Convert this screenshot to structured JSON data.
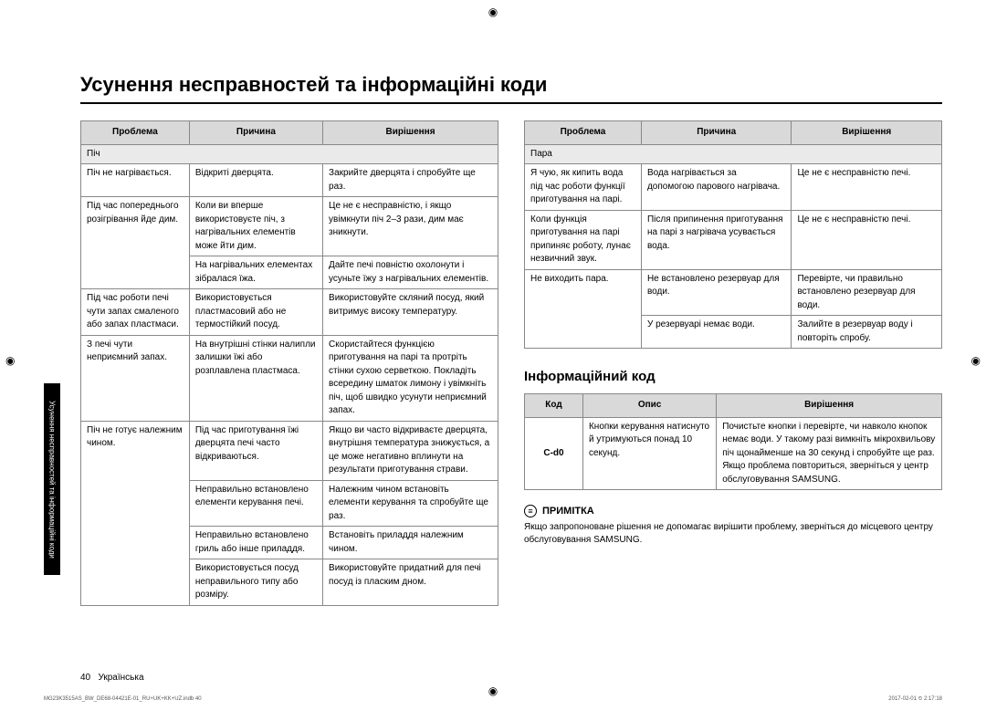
{
  "title": "Усунення несправностей та інформаційні коди",
  "sideTab": "Усунення несправностей та інформаційні коди",
  "columns_header": {
    "problem": "Проблема",
    "cause": "Причина",
    "solution": "Вирішення"
  },
  "leftTable": {
    "section": "Піч",
    "rows": [
      {
        "p": "Піч не нагрівається.",
        "c": "Відкриті дверцята.",
        "s": "Закрийте дверцята і спробуйте ще раз."
      },
      {
        "p": "Під час попереднього розігрівання йде дим.",
        "pRowspan": 2,
        "c": "Коли ви вперше використовуєте піч, з нагрівальних елементів може йти дим.",
        "s": "Це не є несправністю, і якщо увімкнути піч 2–3 рази, дим має зникнути."
      },
      {
        "c": "На нагрівальних елементах зібралася їжа.",
        "s": "Дайте печі повністю охолонути і усуньте їжу з нагрівальних елементів."
      },
      {
        "p": "Під час роботи печі чути запах смаленого або запах пластмаси.",
        "c": "Використовується пластмасовий або не термостійкий посуд.",
        "s": "Використовуйте скляний посуд, який витримує високу температуру."
      },
      {
        "p": "З печі чути неприємний запах.",
        "c": "На внутрішні стінки налипли залишки їжі або розплавлена пластмаса.",
        "s": "Скористайтеся функцією приготування на парі та протріть стінки сухою серветкою. Покладіть всередину шматок лимону і увімкніть піч, щоб швидко усунути неприємний запах."
      },
      {
        "p": "Піч не готує належним чином.",
        "pRowspan": 4,
        "c": "Під час приготування їжі дверцята печі часто відкриваються.",
        "s": "Якщо ви часто відкриваєте дверцята, внутрішня температура знижується, а це може негативно вплинути на результати приготування страви."
      },
      {
        "c": "Неправильно встановлено елементи керування печі.",
        "s": "Належним чином встановіть елементи керування та спробуйте ще раз."
      },
      {
        "c": "Неправильно встановлено гриль або інше приладдя.",
        "s": "Встановіть приладдя належним чином."
      },
      {
        "c": "Використовується посуд неправильного типу або розміру.",
        "s": "Використовуйте придатний для печі посуд із пласким дном."
      }
    ]
  },
  "rightTable": {
    "section": "Пара",
    "rows": [
      {
        "p": "Я чую, як кипить вода під час роботи функції приготування на парі.",
        "c": "Вода нагрівається за допомогою парового нагрівача.",
        "s": "Це не є несправністю печі."
      },
      {
        "p": "Коли функція приготування на парі припиняє роботу, лунає незвичний звук.",
        "c": "Після припинення приготування на парі з нагрівача усувається вода.",
        "s": "Це не є несправністю печі."
      },
      {
        "p": "Не виходить пара.",
        "pRowspan": 2,
        "c": "Не встановлено резервуар для води.",
        "s": "Перевірте, чи правильно встановлено резервуар для води."
      },
      {
        "c": "У резервуарі немає води.",
        "s": "Залийте в резервуар воду і повторіть спробу."
      }
    ]
  },
  "infoCode": {
    "heading": "Інформаційний код",
    "header": {
      "code": "Код",
      "desc": "Опис",
      "res": "Вирішення"
    },
    "row": {
      "code": "C-d0",
      "desc": "Кнопки керування натиснуто й утримуються понад 10 секунд.",
      "res": "Почистьте кнопки і перевірте, чи навколо кнопок немає води. У такому разі вимкніть мікрохвильову піч щонайменше на 30 секунд і спробуйте ще раз. Якщо проблема повториться, зверніться у центр обслуговування SAMSUNG."
    }
  },
  "note": {
    "label": "ПРИМІТКА",
    "text": "Якщо запропоноване рішення не допомагає вирішити проблему, зверніться до місцевого центру обслуговування SAMSUNG."
  },
  "footer": {
    "page": "40",
    "lang": "Українська"
  },
  "imprint": {
    "left": "MG23K3515AS_BW_DE68-04421E-01_RU+UK+KK+UZ.indb   40",
    "right": "2017-02-01   ⏲ 2:17:18"
  }
}
